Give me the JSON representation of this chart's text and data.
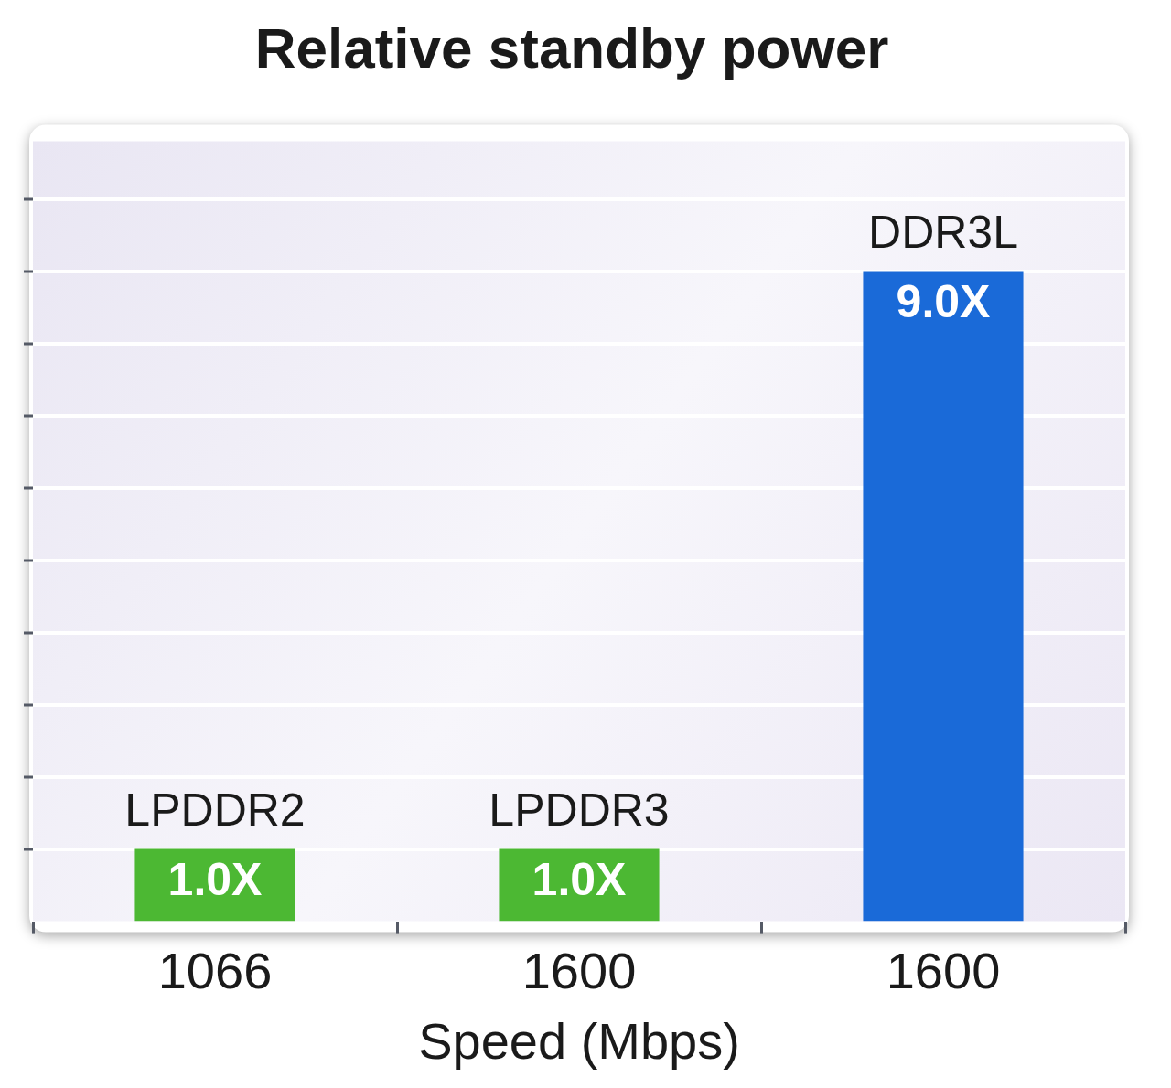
{
  "chart_data": {
    "type": "bar",
    "title": "Relative standby power",
    "xlabel": "Speed (Mbps)",
    "categories": [
      "1066",
      "1600",
      "1600"
    ],
    "series": [
      {
        "name": "LPDDR2",
        "color": "#4cb833",
        "values": [
          1.0,
          null,
          null
        ],
        "value_labels": [
          "1.0X",
          null,
          null
        ]
      },
      {
        "name": "LPDDR3",
        "color": "#4cb833",
        "values": [
          null,
          1.0,
          null
        ],
        "value_labels": [
          null,
          "1.0X",
          null
        ]
      },
      {
        "name": "DDR3L",
        "color": "#1a6ad8",
        "values": [
          null,
          null,
          9.0
        ],
        "value_labels": [
          null,
          null,
          "9.0X"
        ]
      }
    ],
    "stacked": true,
    "ylim": [
      0,
      10.8
    ],
    "yticks": [
      {
        "value": 1,
        "label": null
      },
      {
        "value": 2,
        "label": null
      },
      {
        "value": 3,
        "label": null
      },
      {
        "value": 4,
        "label": null
      },
      {
        "value": 5,
        "label": null
      },
      {
        "value": 6,
        "label": null
      },
      {
        "value": 7,
        "label": null
      },
      {
        "value": 8,
        "label": null
      },
      {
        "value": 9,
        "label": null
      },
      {
        "value": 10,
        "label": null
      }
    ],
    "grid": "y",
    "legend": false,
    "tick_labels": "x"
  }
}
